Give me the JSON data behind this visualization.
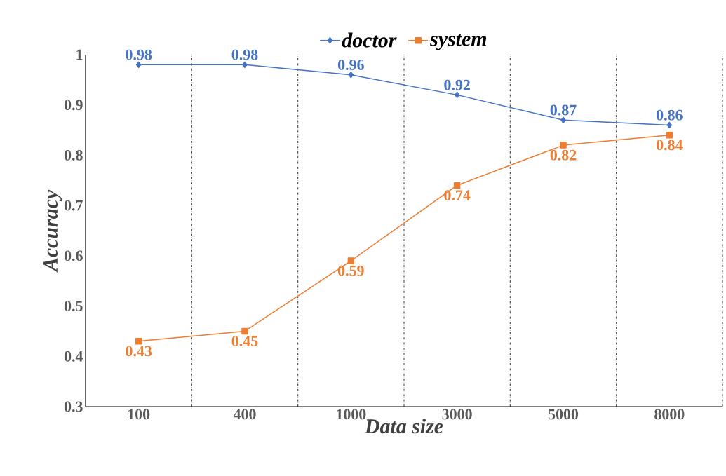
{
  "chart_data": {
    "type": "line",
    "xlabel": "Data size",
    "ylabel": "Accuracy",
    "categories": [
      "100",
      "400",
      "1000",
      "3000",
      "5000",
      "8000"
    ],
    "series": [
      {
        "name": "doctor",
        "color": "#4472c4",
        "marker": "diamond",
        "values": [
          0.98,
          0.98,
          0.96,
          0.92,
          0.87,
          0.86
        ]
      },
      {
        "name": "system",
        "color": "#ed7d31",
        "marker": "square",
        "values": [
          0.43,
          0.45,
          0.59,
          0.74,
          0.82,
          0.84
        ]
      }
    ],
    "ylim": [
      0.3,
      1
    ],
    "yticks": [
      0.3,
      0.4,
      0.5,
      0.6,
      0.7,
      0.8,
      0.9,
      1
    ],
    "grid": "x",
    "legend": "top",
    "data_labels": true
  }
}
